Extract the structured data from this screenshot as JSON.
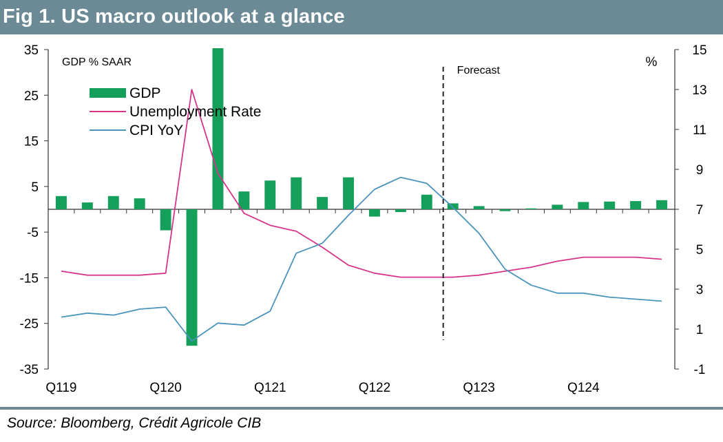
{
  "header": {
    "title": "Fig 1. US macro outlook at a glance"
  },
  "source": "Source: Bloomberg, Crédit Agricole CIB",
  "colors": {
    "header_bg": "#6b8a95",
    "gdp": "#14a05a",
    "unemployment": "#d6338a",
    "cpi": "#4a93bb"
  },
  "chart_data": {
    "type": "bar+line",
    "title": "Fig 1. US macro outlook at a glance",
    "left_axis_label": "GDP % SAAR",
    "right_axis_label": "%",
    "forecast_label": "Forecast",
    "forecast_after_index": 15,
    "left_ylim": [
      -35,
      35
    ],
    "left_ticks": [
      35,
      25,
      15,
      5,
      -5,
      -15,
      -25,
      -35
    ],
    "right_ylim": [
      -1,
      15
    ],
    "right_ticks": [
      15,
      13,
      11,
      9,
      7,
      5,
      3,
      1,
      -1
    ],
    "zero_line_left": 0,
    "categories": [
      "Q119",
      "Q219",
      "Q319",
      "Q419",
      "Q120",
      "Q220",
      "Q320",
      "Q420",
      "Q121",
      "Q221",
      "Q321",
      "Q421",
      "Q122",
      "Q222",
      "Q322",
      "Q422",
      "Q123",
      "Q223",
      "Q323",
      "Q423",
      "Q124",
      "Q224",
      "Q324",
      "Q424"
    ],
    "x_tick_labels": [
      {
        "index": 0,
        "label": "Q119"
      },
      {
        "index": 4,
        "label": "Q120"
      },
      {
        "index": 8,
        "label": "Q121"
      },
      {
        "index": 12,
        "label": "Q122"
      },
      {
        "index": 16,
        "label": "Q123"
      },
      {
        "index": 20,
        "label": "Q124"
      }
    ],
    "series": [
      {
        "name": "GDP",
        "type": "bar",
        "axis": "left",
        "values": [
          2.9,
          1.5,
          2.9,
          2.4,
          -4.6,
          -29.9,
          35.3,
          3.9,
          6.3,
          7.0,
          2.7,
          7.0,
          -1.6,
          -0.6,
          3.2,
          1.3,
          0.7,
          -0.4,
          0.2,
          1.0,
          1.6,
          1.7,
          1.8,
          2.0
        ]
      },
      {
        "name": "Unemployment Rate",
        "type": "line",
        "axis": "right",
        "values": [
          3.9,
          3.7,
          3.7,
          3.7,
          3.8,
          13.0,
          8.8,
          6.8,
          6.2,
          5.9,
          5.1,
          4.2,
          3.8,
          3.6,
          3.6,
          3.6,
          3.7,
          3.9,
          4.1,
          4.4,
          4.6,
          4.6,
          4.6,
          4.5
        ]
      },
      {
        "name": "CPI YoY",
        "type": "line",
        "axis": "right",
        "values": [
          1.6,
          1.8,
          1.7,
          2.0,
          2.1,
          0.4,
          1.3,
          1.2,
          1.9,
          4.8,
          5.3,
          6.7,
          8.0,
          8.6,
          8.3,
          7.1,
          5.8,
          4.0,
          3.2,
          2.8,
          2.8,
          2.6,
          2.5,
          2.4
        ]
      }
    ],
    "legend": {
      "placement": "top-left",
      "entries": [
        "GDP",
        "Unemployment Rate",
        "CPI YoY"
      ]
    }
  }
}
